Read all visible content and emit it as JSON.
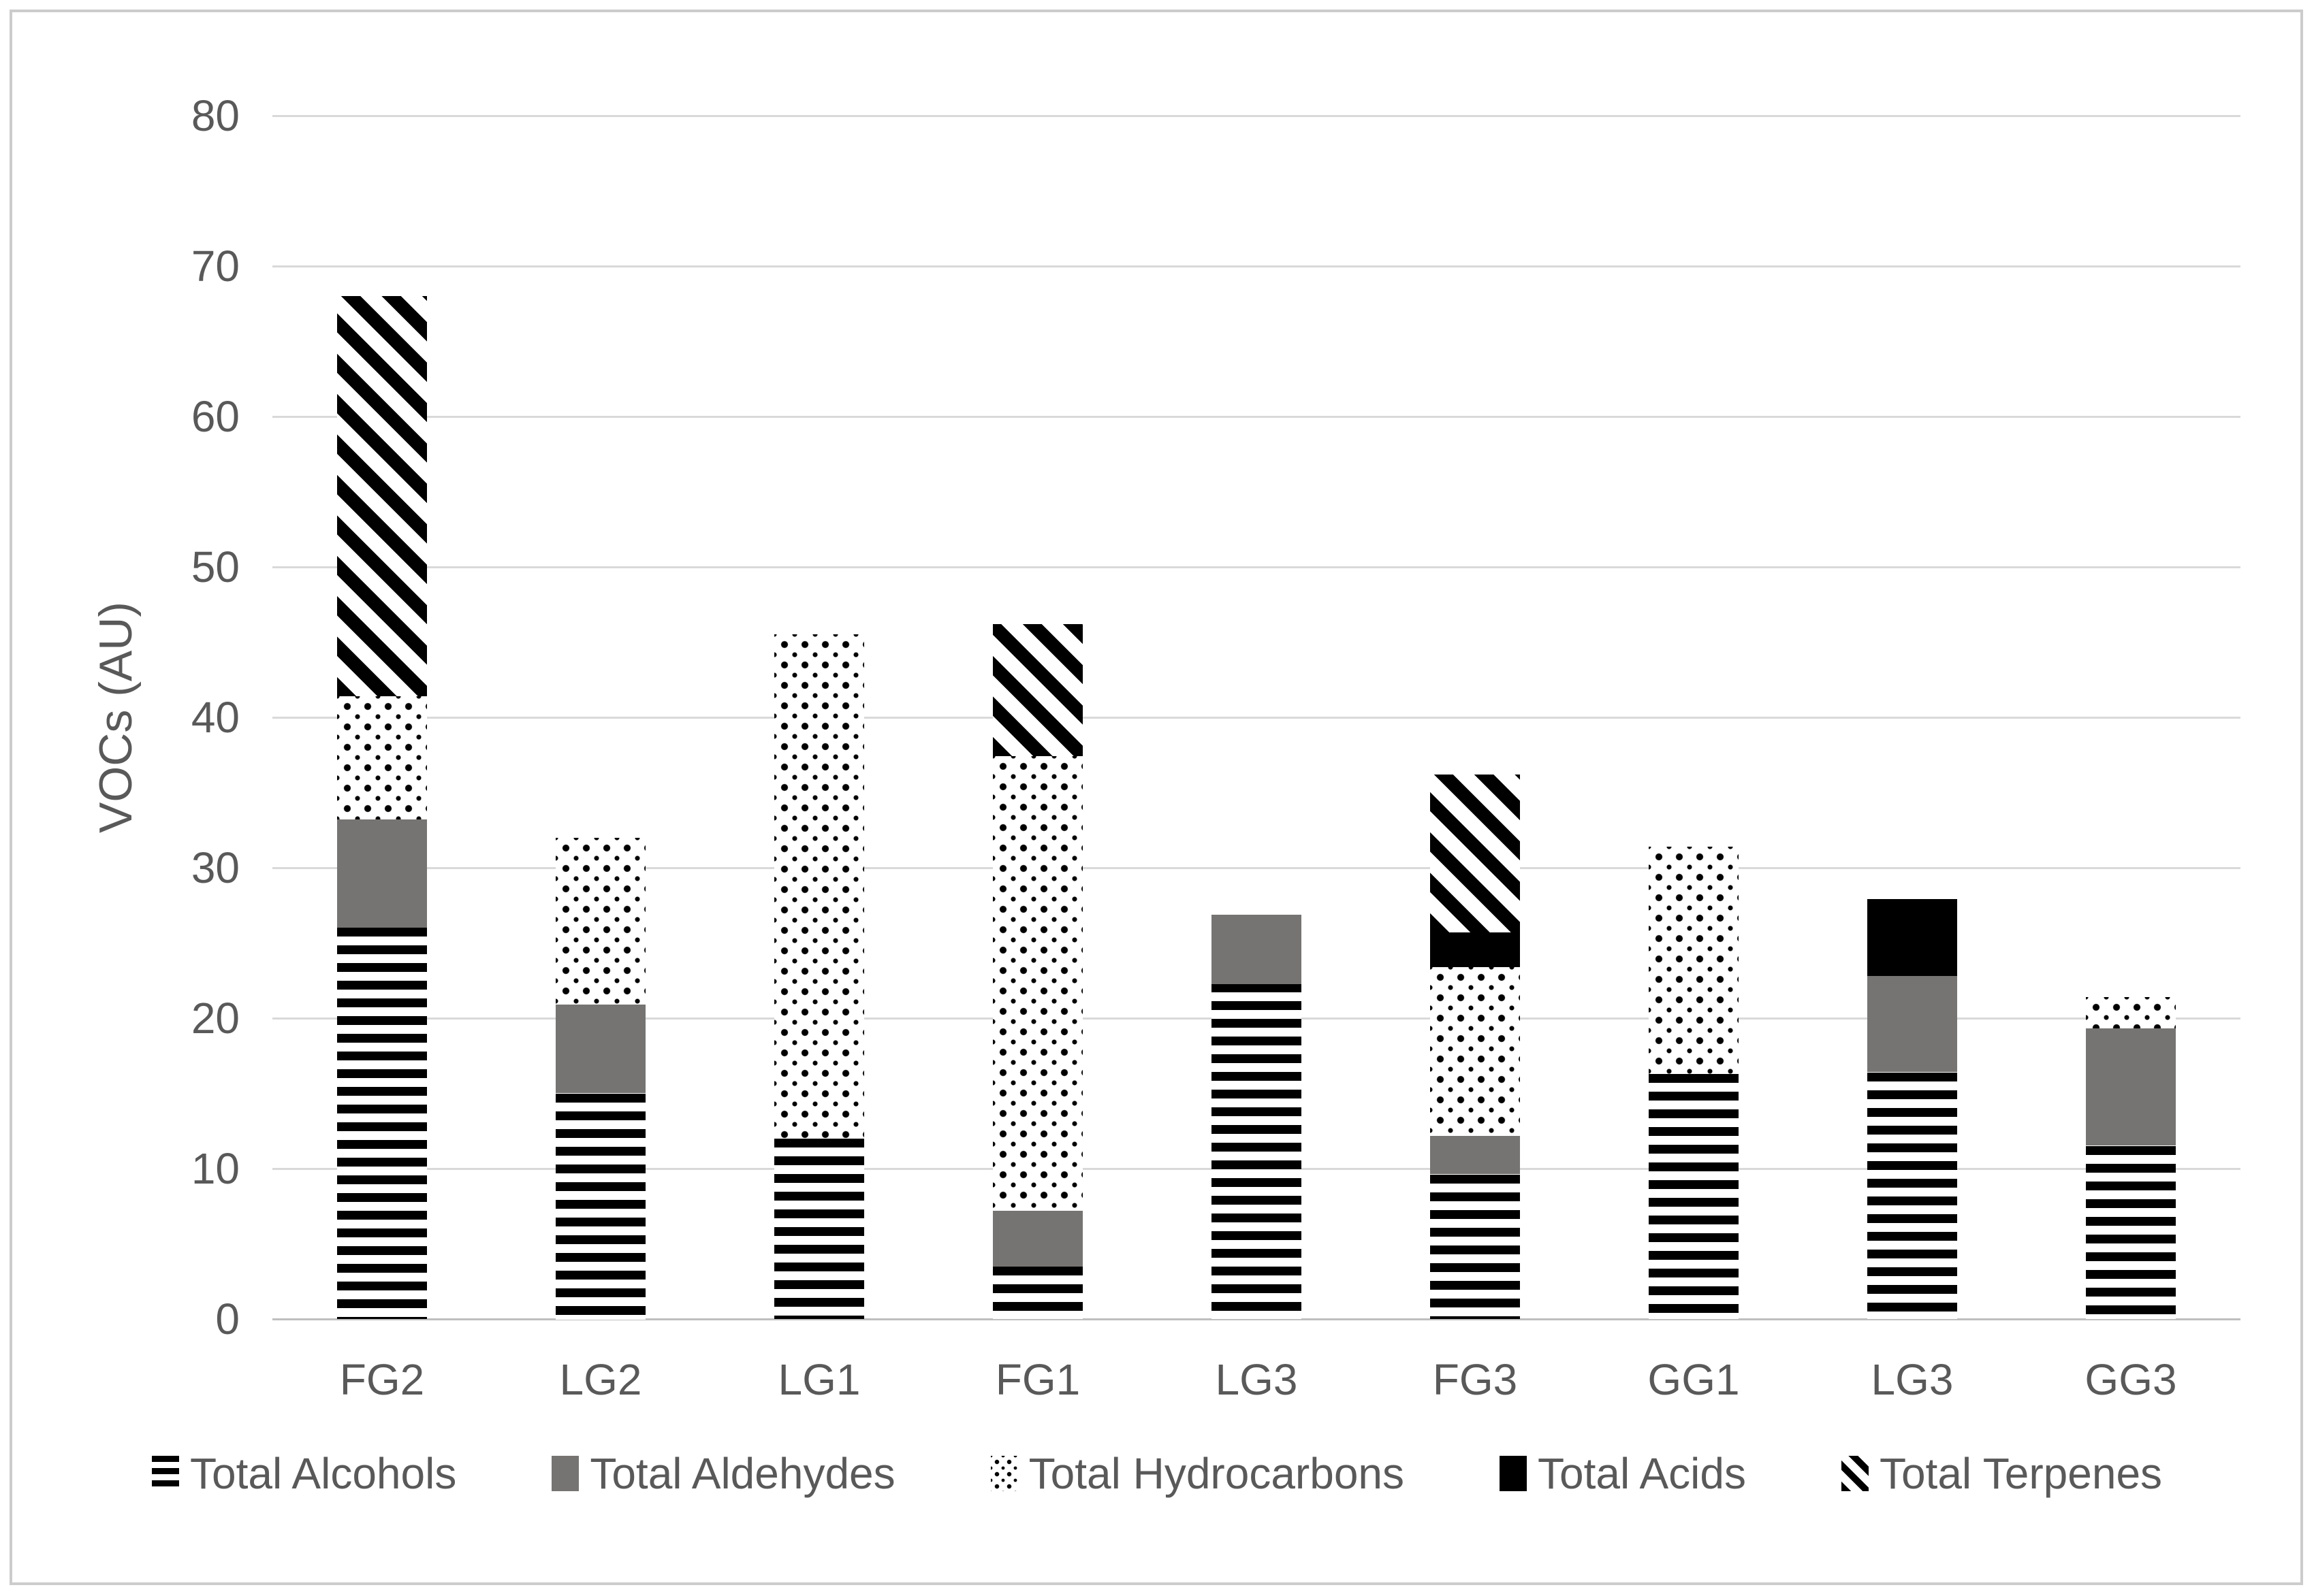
{
  "chart_data": {
    "type": "bar",
    "stacked": true,
    "title": "",
    "ylabel": "VOCs (AU)",
    "xlabel": "",
    "ylim": [
      0,
      80
    ],
    "yticks": [
      0,
      10,
      20,
      30,
      40,
      50,
      60,
      70,
      80
    ],
    "grid": true,
    "legend_position": "bottom",
    "categories": [
      "FG2",
      "LG2",
      "LG1",
      "FG1",
      "LG3",
      "FG3",
      "GG1",
      "LG3",
      "GG3"
    ],
    "series": [
      {
        "name": "Total Alcohols",
        "pattern": "horizontal-stripes",
        "values": [
          26.0,
          15.0,
          12.0,
          3.5,
          22.3,
          9.6,
          16.3,
          16.4,
          11.5
        ]
      },
      {
        "name": "Total Aldehydes",
        "pattern": "solid-gray",
        "values": [
          7.2,
          5.9,
          0,
          3.7,
          4.6,
          2.6,
          0,
          6.4,
          7.8
        ]
      },
      {
        "name": "Total Hydrocarbons",
        "pattern": "dots",
        "values": [
          8.2,
          11.1,
          33.5,
          30.2,
          0,
          11.2,
          15.1,
          0,
          2.1
        ]
      },
      {
        "name": "Total Acids",
        "pattern": "solid-black",
        "values": [
          0,
          0,
          0,
          0,
          0,
          2.3,
          0,
          5.1,
          0
        ]
      },
      {
        "name": "Total Terpenes",
        "pattern": "diagonal-stripes",
        "values": [
          26.6,
          0,
          0,
          8.8,
          0,
          10.5,
          0,
          0,
          0
        ]
      }
    ],
    "stack_totals": [
      68.0,
      32.0,
      45.5,
      46.2,
      26.9,
      36.2,
      31.4,
      27.9,
      21.4
    ]
  },
  "colors": {
    "text": "#595959",
    "gridline": "#d9d9d9",
    "axis_line": "#bfbfbf",
    "frame_border": "#cccccc",
    "aldehyde_gray": "#767472",
    "pattern_black": "#000000",
    "background": "#ffffff"
  }
}
